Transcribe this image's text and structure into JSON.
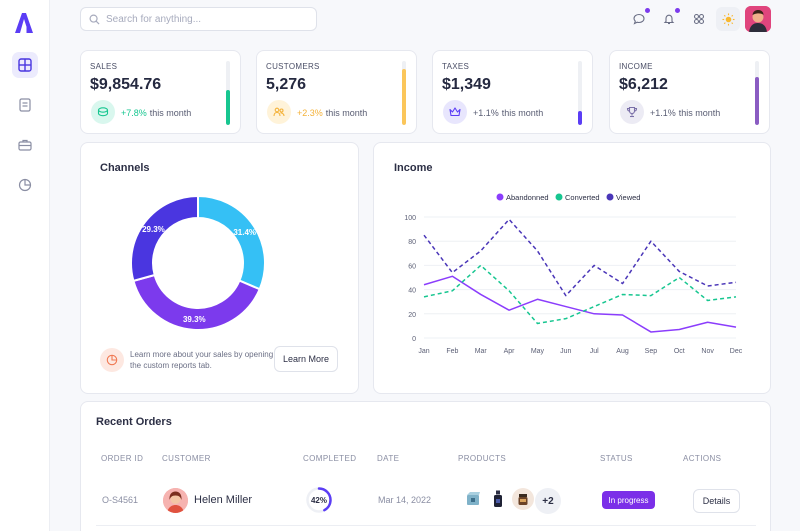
{
  "logo": {
    "letter": "A",
    "brand_color": "#5b3df5"
  },
  "sidebar": {
    "items": [
      {
        "icon": "dashboard-grid-icon",
        "active": true
      },
      {
        "icon": "document-icon",
        "active": false
      },
      {
        "icon": "briefcase-icon",
        "active": false
      },
      {
        "icon": "pie-chart-icon",
        "active": false
      }
    ]
  },
  "header": {
    "search_placeholder": "Search for anything...",
    "icons": [
      "chat-icon",
      "bell-icon",
      "apps-icon",
      "sun-icon",
      "avatar"
    ]
  },
  "stats": [
    {
      "label": "SALES",
      "value": "$9,854.76",
      "change": "+7.8%",
      "suffix": "this month",
      "accent": "#17c690",
      "change_color": "#17c690",
      "icon": "money-icon",
      "icon_bg": "#d9f7ee",
      "level": 0.55
    },
    {
      "label": "CUSTOMERS",
      "value": "5,276",
      "change": "+2.3%",
      "suffix": "this month",
      "accent": "#fbc65a",
      "change_color": "#f4b23a",
      "icon": "users-icon",
      "icon_bg": "#fff3d9",
      "level": 0.88
    },
    {
      "label": "TAXES",
      "value": "$1,349",
      "change": "+1.1%",
      "suffix": "this month",
      "accent": "#5b3df5",
      "change_color": "#5b5f75",
      "icon": "crown-icon",
      "icon_bg": "#e8e6fd",
      "level": 0.22
    },
    {
      "label": "INCOME",
      "value": "$6,212",
      "change": "+1.1%",
      "suffix": "this month",
      "accent": "#8a5cc2",
      "change_color": "#5b5f75",
      "icon": "trophy-icon",
      "icon_bg": "#ecebf4",
      "level": 0.75
    }
  ],
  "channels": {
    "title": "Channels",
    "learn_text": "Learn more about your sales by opening the custom reports tab.",
    "learn_button": "Learn More"
  },
  "income": {
    "title": "Income"
  },
  "chart_data": [
    {
      "type": "pie",
      "title": "Channels",
      "donut": true,
      "slices": [
        {
          "label": "31.4%",
          "value": 31.4,
          "color": "#35c0f5"
        },
        {
          "label": "39.3%",
          "value": 39.3,
          "color": "#7c3aed"
        },
        {
          "label": "29.3%",
          "value": 29.3,
          "color": "#4a36e0"
        }
      ]
    },
    {
      "type": "line",
      "title": "Income",
      "categories": [
        "Jan",
        "Feb",
        "Mar",
        "Apr",
        "May",
        "Jun",
        "Jul",
        "Aug",
        "Sep",
        "Oct",
        "Nov",
        "Dec"
      ],
      "ylim": [
        0,
        100
      ],
      "yticks": [
        0,
        20,
        40,
        60,
        80,
        100
      ],
      "grid": true,
      "legend_position": "top",
      "series": [
        {
          "name": "Abandonned",
          "color": "#8b3dfc",
          "dashed": false,
          "values": [
            44,
            51,
            36,
            23,
            32,
            26,
            20,
            19,
            5,
            7,
            13,
            9
          ]
        },
        {
          "name": "Converted",
          "color": "#17c690",
          "dashed": true,
          "values": [
            34,
            39,
            60,
            39,
            12,
            16,
            26,
            36,
            35,
            50,
            31,
            34
          ]
        },
        {
          "name": "Viewed",
          "color": "#4a36b8",
          "dashed": true,
          "values": [
            85,
            54,
            72,
            98,
            72,
            35,
            60,
            45,
            80,
            55,
            43,
            46
          ]
        }
      ]
    }
  ],
  "orders": {
    "title": "Recent Orders",
    "columns": [
      "ORDER ID",
      "CUSTOMER",
      "COMPLETED",
      "DATE",
      "PRODUCTS",
      "STATUS",
      "ACTIONS"
    ],
    "rows": [
      {
        "order_id": "O-S4561",
        "customer": "Helen Miller",
        "completed": "42%",
        "completed_value": 0.42,
        "date": "Mar 14, 2022",
        "products_extra": "+2",
        "status": "In progress",
        "action": "Details"
      }
    ]
  }
}
